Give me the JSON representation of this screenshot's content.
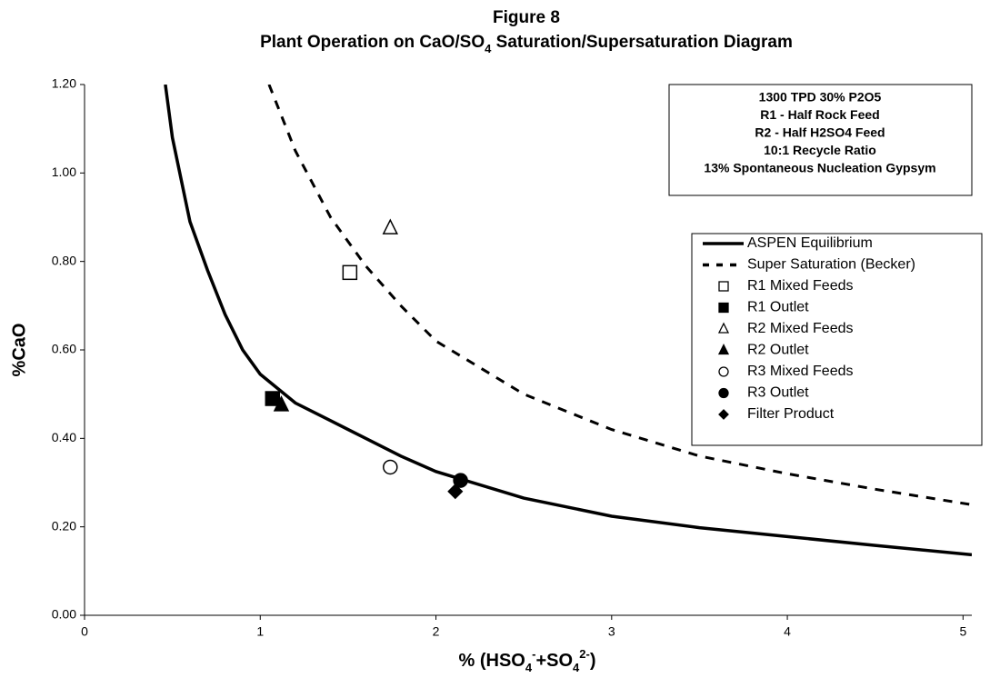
{
  "chart_data": {
    "type": "scatter",
    "title": "Figure 8",
    "subtitle": [
      {
        "text": "Plant Operation on CaO/SO"
      },
      {
        "text": "4",
        "sub": true
      },
      {
        "text": " Saturation/Supersaturation Diagram"
      }
    ],
    "x_label": [
      {
        "text": "% (HSO"
      },
      {
        "text": "4",
        "sub": true
      },
      {
        "text": "-",
        "sup": true
      },
      {
        "text": "+SO"
      },
      {
        "text": "4",
        "sub": true
      },
      {
        "text": "2-",
        "sup": true
      },
      {
        "text": ")"
      }
    ],
    "y_label": "%CaO",
    "annotation": [
      "1300 TPD 30% P2O5",
      "R1 - Half Rock Feed",
      "R2 - Half H2SO4 Feed",
      "10:1 Recycle Ratio",
      "13% Spontaneous Nucleation Gypsym"
    ],
    "xlim": [
      0,
      5.05
    ],
    "xticks": [
      0,
      1,
      2,
      3,
      4,
      5
    ],
    "ylim": [
      0,
      1.2
    ],
    "yticks": [
      {
        "value": 0,
        "label": "0.00"
      },
      {
        "value": 0.2,
        "label": "0.20"
      },
      {
        "value": 0.4,
        "label": "0.40"
      },
      {
        "value": 0.6,
        "label": "0.60"
      },
      {
        "value": 0.8,
        "label": "0.80"
      },
      {
        "value": 1,
        "label": "1.00"
      },
      {
        "value": 1.2,
        "label": "1.20"
      }
    ],
    "series": [
      {
        "name": "ASPEN Equilibrium",
        "line": "solid",
        "color": "#000000",
        "x": [
          0.46,
          0.5,
          0.6,
          0.7,
          0.8,
          0.9,
          1.0,
          1.2,
          1.4,
          1.6,
          1.8,
          2.0,
          2.5,
          3.0,
          3.5,
          4.0,
          4.5,
          5.05
        ],
        "values": [
          1.2,
          1.08,
          0.89,
          0.78,
          0.68,
          0.6,
          0.545,
          0.48,
          0.44,
          0.4,
          0.36,
          0.325,
          0.265,
          0.224,
          0.198,
          0.178,
          0.158,
          0.137
        ]
      },
      {
        "name": "Super Saturation (Becker)",
        "line": "dashed",
        "color": "#000000",
        "x": [
          1.05,
          1.2,
          1.4,
          1.6,
          1.8,
          2.0,
          2.5,
          3.0,
          3.5,
          4.0,
          4.5,
          5.05
        ],
        "values": [
          1.2,
          1.05,
          0.9,
          0.79,
          0.7,
          0.62,
          0.5,
          0.42,
          0.36,
          0.32,
          0.285,
          0.25
        ]
      },
      {
        "name": "R1 Mixed Feeds",
        "marker": "square",
        "filled": false,
        "color": "#000000",
        "x": [
          1.51
        ],
        "values": [
          0.775
        ]
      },
      {
        "name": "R1 Outlet",
        "marker": "square",
        "filled": true,
        "color": "#000000",
        "x": [
          1.07
        ],
        "values": [
          0.49
        ]
      },
      {
        "name": "R2 Mixed Feeds",
        "marker": "triangle",
        "filled": false,
        "color": "#000000",
        "x": [
          1.74
        ],
        "values": [
          0.875
        ]
      },
      {
        "name": "R2 Outlet",
        "marker": "triangle",
        "filled": true,
        "color": "#000000",
        "x": [
          1.12
        ],
        "values": [
          0.475
        ]
      },
      {
        "name": "R3 Mixed Feeds",
        "marker": "circle",
        "filled": false,
        "color": "#000000",
        "x": [
          1.74
        ],
        "values": [
          0.335
        ]
      },
      {
        "name": "R3 Outlet",
        "marker": "circle",
        "filled": true,
        "color": "#000000",
        "x": [
          2.14
        ],
        "values": [
          0.305
        ]
      },
      {
        "name": "Filter Product",
        "marker": "diamond",
        "filled": true,
        "color": "#000000",
        "x": [
          2.11
        ],
        "values": [
          0.28
        ]
      }
    ]
  }
}
